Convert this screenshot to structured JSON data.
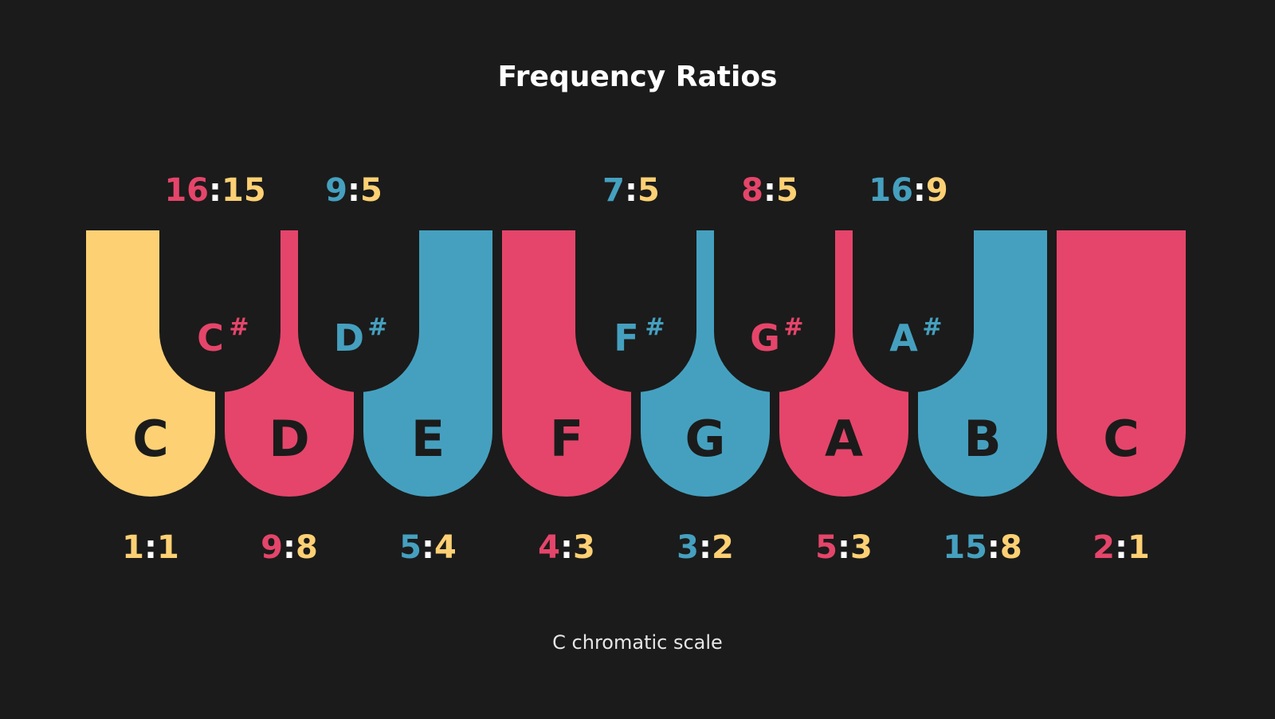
{
  "title": "Frequency Ratios",
  "subtitle": "C chromatic scale",
  "colors": {
    "yellow": "#fdd074",
    "pink": "#e5456a",
    "blue": "#45a0bf",
    "white": "#ffffff",
    "background": "#1b1b1b"
  },
  "natural_keys": [
    {
      "note": "C",
      "color": "yellow",
      "ratio": {
        "num": "1",
        "den": "1",
        "num_color": "yellow",
        "den_color": "yellow"
      }
    },
    {
      "note": "D",
      "color": "pink",
      "ratio": {
        "num": "9",
        "den": "8",
        "num_color": "pink",
        "den_color": "yellow"
      }
    },
    {
      "note": "E",
      "color": "blue",
      "ratio": {
        "num": "5",
        "den": "4",
        "num_color": "blue",
        "den_color": "yellow"
      }
    },
    {
      "note": "F",
      "color": "pink",
      "ratio": {
        "num": "4",
        "den": "3",
        "num_color": "pink",
        "den_color": "yellow"
      }
    },
    {
      "note": "G",
      "color": "blue",
      "ratio": {
        "num": "3",
        "den": "2",
        "num_color": "blue",
        "den_color": "yellow"
      }
    },
    {
      "note": "A",
      "color": "pink",
      "ratio": {
        "num": "5",
        "den": "3",
        "num_color": "pink",
        "den_color": "yellow"
      }
    },
    {
      "note": "B",
      "color": "blue",
      "ratio": {
        "num": "15",
        "den": "8",
        "num_color": "blue",
        "den_color": "yellow"
      }
    },
    {
      "note": "C",
      "color": "pink",
      "ratio": {
        "num": "2",
        "den": "1",
        "num_color": "pink",
        "den_color": "yellow"
      }
    }
  ],
  "sharp_keys": [
    {
      "note": "C",
      "sign": "#",
      "after_index": 0,
      "color": "pink",
      "ratio": {
        "num": "16",
        "den": "15",
        "num_color": "pink",
        "den_color": "yellow"
      }
    },
    {
      "note": "D",
      "sign": "#",
      "after_index": 1,
      "color": "blue",
      "ratio": {
        "num": "9",
        "den": "5",
        "num_color": "blue",
        "den_color": "yellow"
      }
    },
    {
      "note": "F",
      "sign": "#",
      "after_index": 3,
      "color": "blue",
      "ratio": {
        "num": "7",
        "den": "5",
        "num_color": "blue",
        "den_color": "yellow"
      }
    },
    {
      "note": "G",
      "sign": "#",
      "after_index": 4,
      "color": "pink",
      "ratio": {
        "num": "8",
        "den": "5",
        "num_color": "pink",
        "den_color": "yellow"
      }
    },
    {
      "note": "A",
      "sign": "#",
      "after_index": 5,
      "color": "blue",
      "ratio": {
        "num": "16",
        "den": "9",
        "num_color": "blue",
        "den_color": "yellow"
      }
    }
  ]
}
